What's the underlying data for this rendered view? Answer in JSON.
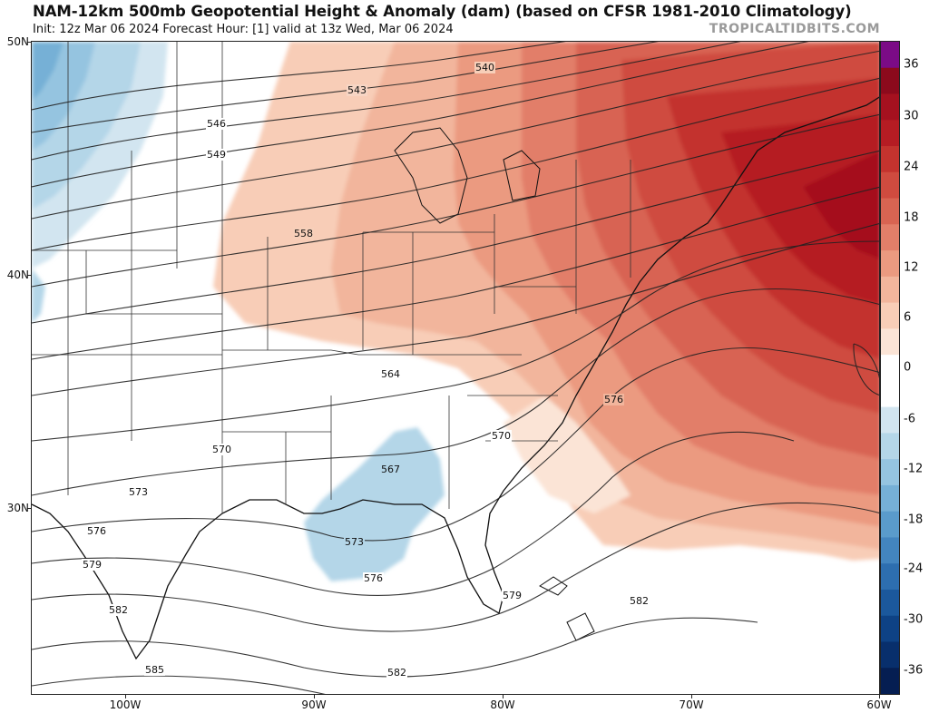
{
  "header": {
    "title": "NAM-12km 500mb Geopotential Height & Anomaly (dam) (based on CFSR 1981-2010 Climatology)",
    "subtitle": "Init: 12z Mar 06 2024   Forecast Hour: [1]   valid at 13z Wed, Mar 06 2024",
    "brand": "TROPICALTIDBITS.COM"
  },
  "axes": {
    "lat_labels": [
      "50N",
      "40N",
      "30N"
    ],
    "lon_labels": [
      "100W",
      "90W",
      "80W",
      "70W",
      "60W"
    ]
  },
  "colorbar": {
    "labels": [
      "36",
      "30",
      "24",
      "18",
      "12",
      "6",
      "0",
      "-6",
      "-12",
      "-18",
      "-24",
      "-30",
      "-36"
    ],
    "colors": [
      "#7b0b86",
      "#8c0a1c",
      "#a5111f",
      "#b51c23",
      "#c3332e",
      "#cf4b3f",
      "#d86452",
      "#e27e69",
      "#eb9a80",
      "#f2b59c",
      "#f8cdb7",
      "#fbe4d6",
      "#ffffff",
      "#ffffff",
      "#d2e5f0",
      "#b4d6e8",
      "#95c4e0",
      "#76b0d6",
      "#5a9bcb",
      "#4385bf",
      "#2d6eaf",
      "#1b589c",
      "#0e4285",
      "#082f6c",
      "#051e52"
    ]
  },
  "contour_labels": [
    "540",
    "543",
    "546",
    "549",
    "558",
    "564",
    "567",
    "570",
    "570",
    "573",
    "573",
    "576",
    "576",
    "576",
    "579",
    "579",
    "582",
    "582",
    "582",
    "585"
  ]
}
